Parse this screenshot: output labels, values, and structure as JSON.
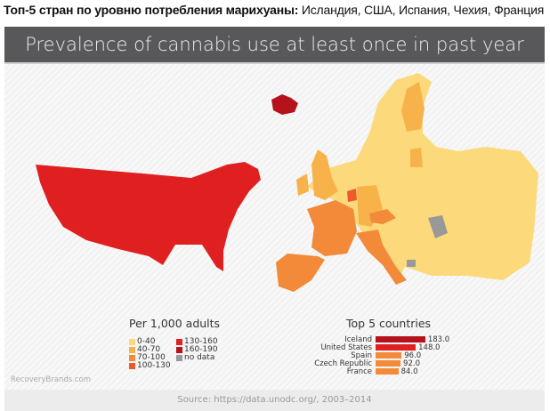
{
  "heading": {
    "bold": "Топ-5 стран по уровню потребления марихуаны:",
    "rest": " Исландия, США, Испания, Чехия, Франция"
  },
  "graphic": {
    "title": "Prevalence of cannabis use at least once in past year",
    "legend": {
      "title": "Per 1,000 adults",
      "items": [
        {
          "label": "0-40",
          "color": "#fcd97a"
        },
        {
          "label": "40-70",
          "color": "#f8b24a"
        },
        {
          "label": "70-100",
          "color": "#f28a3a"
        },
        {
          "label": "100-130",
          "color": "#ee5a2a"
        },
        {
          "label": "130-160",
          "color": "#e02020"
        },
        {
          "label": "160-190",
          "color": "#b5121b"
        },
        {
          "label": "no data",
          "color": "#999999"
        }
      ]
    },
    "top5": {
      "title": "Top 5 countries",
      "rows": [
        {
          "country": "Iceland",
          "value": 183.0,
          "display": "183.0",
          "color": "#b5121b"
        },
        {
          "country": "United States",
          "value": 148.0,
          "display": "148.0",
          "color": "#e02020"
        },
        {
          "country": "Spain",
          "value": 96.0,
          "display": "96.0",
          "color": "#f28a3a"
        },
        {
          "country": "Czech Republic",
          "value": 92.0,
          "display": "92.0",
          "color": "#f28a3a"
        },
        {
          "country": "France",
          "value": 84.0,
          "display": "84.0",
          "color": "#f28a3a"
        }
      ]
    },
    "watermark": "RecoveryBrands.com",
    "source": "Source: https://data.unodc.org/, 2003–2014"
  }
}
